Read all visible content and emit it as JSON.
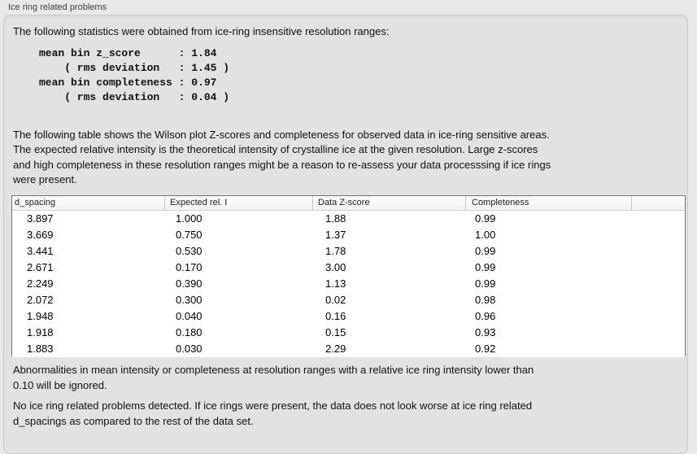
{
  "panel": {
    "title": "Ice ring related problems"
  },
  "intro": {
    "text": "The following statistics were obtained from ice-ring insensitive resolution ranges:",
    "stats_lines": [
      "mean bin z_score      : 1.84",
      "    ( rms deviation   : 1.45 )",
      "mean bin completeness : 0.97",
      "    ( rms deviation   : 0.04 )"
    ]
  },
  "description": {
    "lines": [
      "The following table shows the Wilson plot Z-scores and completeness for observed data in ice-ring sensitive areas.",
      "The expected relative intensity is the theoretical intensity of crystalline ice at the given resolution. Large z-scores",
      "and high completeness in these resolution ranges might be a reason to re-assess your data processsing if ice rings",
      "were present."
    ]
  },
  "table": {
    "columns": [
      "d_spacing",
      "Expected rel. I",
      "Data Z-score",
      "Completeness"
    ],
    "rows": [
      [
        "3.897",
        "1.000",
        "1.88",
        "0.99"
      ],
      [
        "3.669",
        "0.750",
        "1.37",
        "1.00"
      ],
      [
        "3.441",
        "0.530",
        "1.78",
        "0.99"
      ],
      [
        "2.671",
        "0.170",
        "3.00",
        "0.99"
      ],
      [
        "2.249",
        "0.390",
        "1.13",
        "0.99"
      ],
      [
        "2.072",
        "0.300",
        "0.02",
        "0.98"
      ],
      [
        "1.948",
        "0.040",
        "0.16",
        "0.96"
      ],
      [
        "1.918",
        "0.180",
        "0.15",
        "0.93"
      ],
      [
        "1.883",
        "0.030",
        "2.29",
        "0.92"
      ]
    ]
  },
  "notes": {
    "ignore_lines": [
      "Abnormalities in mean intensity or completeness at resolution ranges with a relative ice ring intensity lower than",
      "0.10 will be ignored."
    ],
    "conclusion_lines": [
      "No ice ring related problems detected. If ice rings were present, the data does not look worse at ice ring related",
      "d_spacings as compared to the rest of the data set."
    ]
  },
  "colors": {
    "page-bg": "#e9e9e9",
    "panel-bg": "#e2e2e2",
    "panel-border": "#c9c9c9",
    "table-border": "#757575"
  }
}
